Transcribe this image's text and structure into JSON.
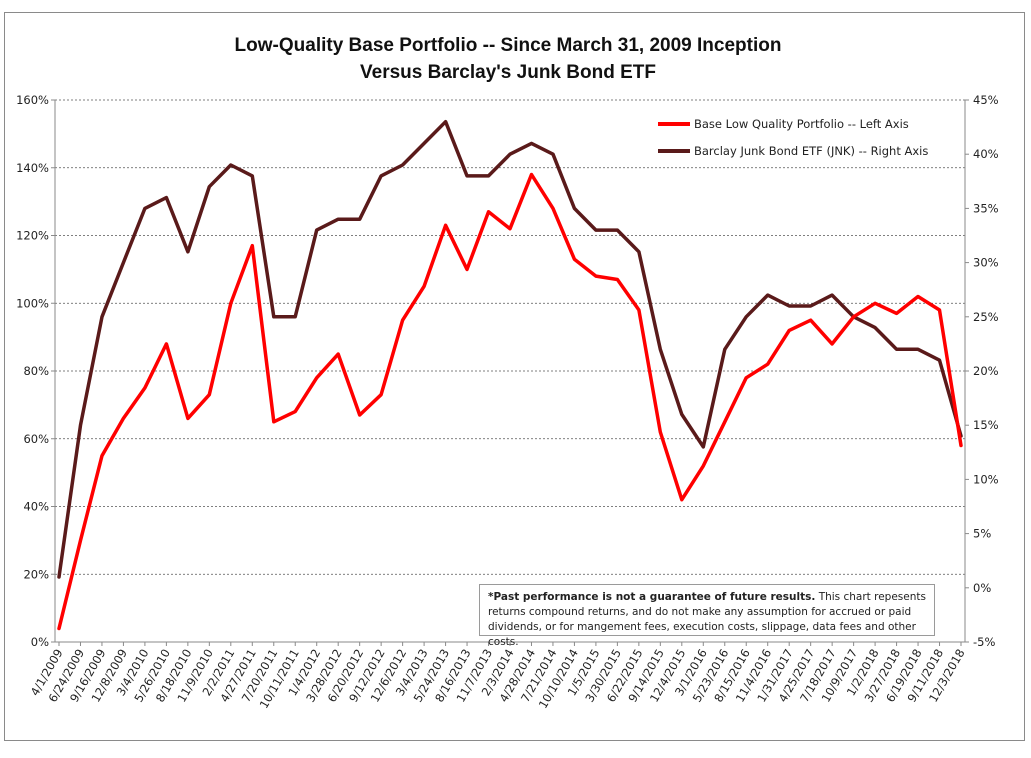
{
  "chart_data": {
    "type": "line",
    "title": "Low-Quality Base Portfolio -- Since March 31, 2009 Inception",
    "subtitle": "Versus Barclay's Junk Bond ETF",
    "left_axis": {
      "ylim": [
        0,
        160
      ],
      "ticks": [
        "0%",
        "20%",
        "40%",
        "60%",
        "80%",
        "100%",
        "120%",
        "140%",
        "160%"
      ]
    },
    "right_axis": {
      "ylim": [
        -5,
        45
      ],
      "ticks": [
        "-5%",
        "0%",
        "5%",
        "10%",
        "15%",
        "20%",
        "25%",
        "30%",
        "35%",
        "40%",
        "45%"
      ]
    },
    "x_tick_labels": [
      "4/1/2009",
      "6/24/2009",
      "9/16/2009",
      "12/8/2009",
      "3/4/2010",
      "5/26/2010",
      "8/18/2010",
      "11/9/2010",
      "2/2/2011",
      "4/27/2011",
      "7/20/2011",
      "10/11/2011",
      "1/4/2012",
      "3/28/2012",
      "6/20/2012",
      "9/12/2012",
      "12/6/2012",
      "3/4/2013",
      "5/24/2013",
      "8/16/2013",
      "11/7/2013",
      "2/3/2014",
      "4/28/2014",
      "7/21/2014",
      "10/10/2014",
      "1/5/2015",
      "3/30/2015",
      "6/22/2015",
      "9/14/2015",
      "12/4/2015",
      "3/1/2016",
      "5/23/2016",
      "8/15/2016",
      "11/4/2016",
      "1/31/2017",
      "4/25/2017",
      "7/18/2017",
      "10/9/2017",
      "1/2/2018",
      "3/27/2018",
      "6/19/2018",
      "9/11/2018",
      "12/3/2018"
    ],
    "grid": true,
    "legend_position": "top-right",
    "series": [
      {
        "name": "Base Low Quality Portfolio -- Left Axis",
        "axis": "left",
        "color": "#ff0000",
        "x_index": [
          0,
          1,
          2,
          3,
          4,
          5,
          6,
          7,
          8,
          9,
          10,
          11,
          12,
          13,
          14,
          15,
          16,
          17,
          18,
          19,
          20,
          21,
          22,
          23,
          24,
          25,
          26,
          27,
          28,
          29,
          30,
          31,
          32,
          33,
          34,
          35,
          36,
          37,
          38,
          39,
          40,
          41,
          42
        ],
        "values": [
          4,
          30,
          55,
          66,
          75,
          88,
          66,
          73,
          100,
          117,
          65,
          68,
          78,
          85,
          67,
          73,
          95,
          105,
          123,
          110,
          127,
          122,
          138,
          128,
          113,
          108,
          107,
          98,
          62,
          42,
          52,
          65,
          78,
          82,
          92,
          95,
          88,
          96,
          100,
          97,
          102,
          98,
          58
        ]
      },
      {
        "name": "Barclay Junk Bond ETF (JNK) -- Right Axis",
        "axis": "right",
        "color": "#5a1a1a",
        "x_index": [
          0,
          1,
          2,
          3,
          4,
          5,
          6,
          7,
          8,
          9,
          10,
          11,
          12,
          13,
          14,
          15,
          16,
          17,
          18,
          19,
          20,
          21,
          22,
          23,
          24,
          25,
          26,
          27,
          28,
          29,
          30,
          31,
          32,
          33,
          34,
          35,
          36,
          37,
          38,
          39,
          40,
          41,
          42
        ],
        "values": [
          1,
          15,
          25,
          30,
          35,
          36,
          31,
          37,
          39,
          38,
          25,
          25,
          33,
          34,
          34,
          38,
          39,
          41,
          43,
          38,
          38,
          40,
          41,
          40,
          35,
          33,
          33,
          31,
          22,
          16,
          13,
          22,
          25,
          27,
          26,
          26,
          27,
          25,
          24,
          22,
          22,
          21,
          14
        ]
      }
    ],
    "disclaimer": {
      "bold": "*Past performance is not a guarantee of future results.",
      "text": " This chart repesents returns compound returns, and do not make any assumption for accrued or paid dividends, or for mangement fees, execution costs, slippage, data fees and other costs."
    }
  }
}
